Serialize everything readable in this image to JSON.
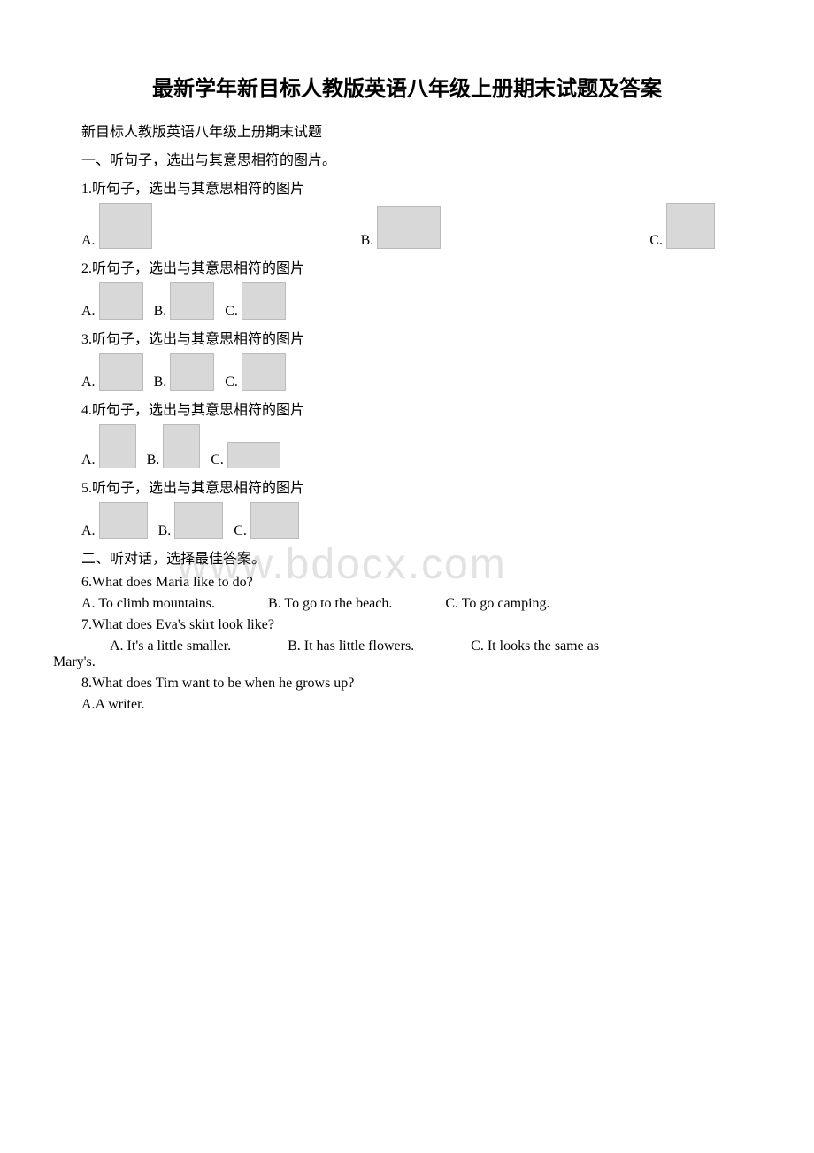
{
  "title": "最新学年新目标人教版英语八年级上册期末试题及答案",
  "subtitle": "新目标人教版英语八年级上册期末试题",
  "section1_header": "一、听句子，选出与其意思相符的图片。",
  "section2_header": "二、听对话，选择最佳答案。",
  "watermark": "www.bdocx.com",
  "q1": {
    "text": "1.听句子，选出与其意思相符的图片",
    "A": "A.",
    "B": "B.",
    "C": "C."
  },
  "q2": {
    "text": "2.听句子，选出与其意思相符的图片",
    "A": "A.",
    "B": "B.",
    "C": "C."
  },
  "q3": {
    "text": "3.听句子，选出与其意思相符的图片",
    "A": "A.",
    "B": "B.",
    "C": "C."
  },
  "q4": {
    "text": "4.听句子，选出与其意思相符的图片",
    "A": "A.",
    "B": "B.",
    "C": "C."
  },
  "q5": {
    "text": "5.听句子，选出与其意思相符的图片",
    "A": "A.",
    "B": "B.",
    "C": "C."
  },
  "q6": {
    "text": "6.What does Maria like to do?",
    "A": "A. To climb mountains.",
    "B": "B. To go to the beach.",
    "C": "C. To go camping."
  },
  "q7": {
    "text": "7.What does Eva's skirt look like?",
    "A": "A. It's a little smaller.",
    "B": "B. It has little flowers.",
    "C": "C. It looks the same as",
    "C2": "Mary's."
  },
  "q8": {
    "text": "8.What does Tim want to be when he grows up?",
    "A": "A.A writer."
  }
}
